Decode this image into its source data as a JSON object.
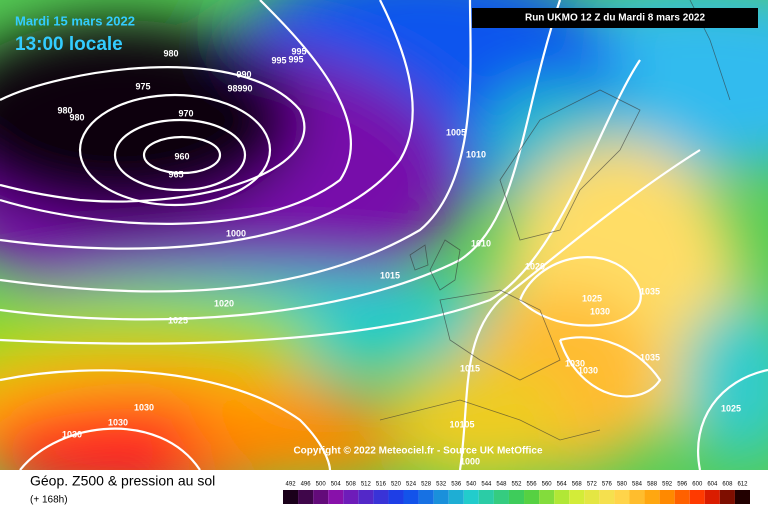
{
  "header": {
    "title": "Mardi 15 mars 2022",
    "time": "13:00 locale",
    "run": "Run UKMO 12 Z du Mardi 8 mars 2022"
  },
  "isobar_labels": [
    "980",
    "975",
    "980",
    "980",
    "970",
    "960",
    "965",
    "990",
    "98990",
    "995",
    "995",
    "995",
    "1000",
    "1005",
    "1010",
    "1010",
    "1015",
    "1020",
    "1025",
    "1020",
    "1025",
    "1030",
    "1035",
    "1035",
    "1030",
    "1030",
    "1015",
    "10105",
    "1000",
    "1025",
    "1030",
    "1030",
    "1030"
  ],
  "copyright": "Copyright © 2022 Meteociel.fr - Source UK MetOffice",
  "legend": {
    "title": "Géop. Z500 & pression au sol",
    "lead_time": "(+ 168h)",
    "scale": [
      492,
      496,
      500,
      504,
      508,
      512,
      516,
      520,
      524,
      528,
      532,
      536,
      540,
      544,
      548,
      552,
      556,
      560,
      564,
      568,
      572,
      576,
      580,
      584,
      588,
      592,
      596,
      600,
      604,
      608,
      612
    ]
  }
}
